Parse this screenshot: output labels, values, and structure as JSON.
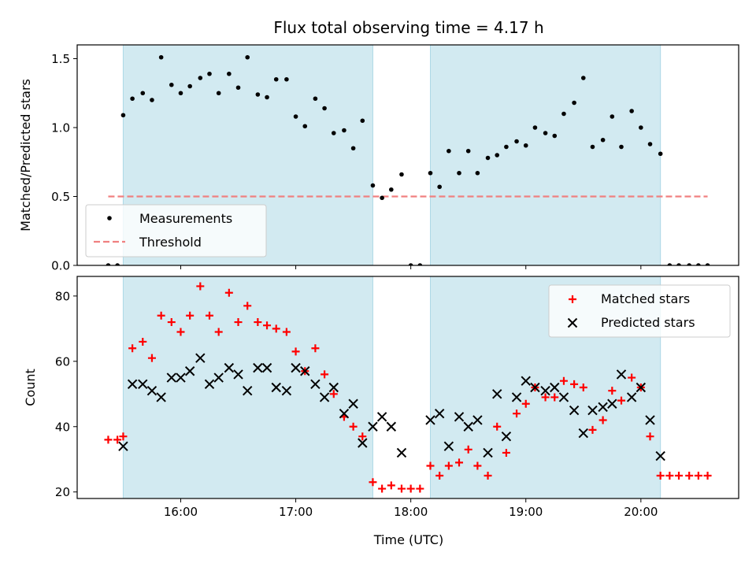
{
  "chart_data": [
    {
      "type": "scatter",
      "title": "Flux total observing time = 4.17 h",
      "xlabel": "",
      "ylabel": "Matched/Predicted stars",
      "xlim_hours": [
        15.1,
        20.85
      ],
      "ylim": [
        0,
        1.6
      ],
      "yticks": [
        0.0,
        0.5,
        1.0,
        1.5
      ],
      "ytick_labels": [
        "0.0",
        "0.5",
        "1.0",
        "1.5"
      ],
      "shaded_intervals_hours": [
        [
          15.5,
          17.67
        ],
        [
          18.17,
          20.17
        ]
      ],
      "shade_color": "#add8e6",
      "threshold": {
        "name": "Threshold",
        "value": 0.5,
        "x_range_hours": [
          15.37,
          20.58
        ],
        "color": "#f08080"
      },
      "legend": {
        "placement": "lower-left",
        "entries": [
          "Measurements",
          "Threshold"
        ]
      },
      "series": [
        {
          "name": "Measurements",
          "marker": "dot",
          "color": "#000000",
          "x": [
            15.37,
            15.45,
            15.5,
            15.58,
            15.67,
            15.75,
            15.83,
            15.92,
            16.0,
            16.08,
            16.17,
            16.25,
            16.33,
            16.42,
            16.5,
            16.58,
            16.67,
            16.75,
            16.83,
            16.92,
            17.0,
            17.08,
            17.17,
            17.25,
            17.33,
            17.42,
            17.5,
            17.58,
            17.67,
            17.75,
            17.83,
            17.92,
            18.0,
            18.08,
            18.17,
            18.25,
            18.33,
            18.42,
            18.5,
            18.58,
            18.67,
            18.75,
            18.83,
            18.92,
            19.0,
            19.08,
            19.17,
            19.25,
            19.33,
            19.42,
            19.5,
            19.58,
            19.67,
            19.75,
            19.83,
            19.92,
            20.0,
            20.08,
            20.17,
            20.25,
            20.33,
            20.42,
            20.5,
            20.58
          ],
          "y": [
            0,
            0,
            1.09,
            1.21,
            1.25,
            1.2,
            1.51,
            1.31,
            1.25,
            1.3,
            1.36,
            1.39,
            1.25,
            1.39,
            1.29,
            1.51,
            1.24,
            1.22,
            1.35,
            1.35,
            1.08,
            1.01,
            1.21,
            1.14,
            0.96,
            0.98,
            0.85,
            1.05,
            0.58,
            0.49,
            0.55,
            0.66,
            0,
            0,
            0.67,
            0.57,
            0.83,
            0.67,
            0.83,
            0.67,
            0.78,
            0.8,
            0.86,
            0.9,
            0.87,
            1.0,
            0.96,
            0.94,
            1.1,
            1.18,
            1.36,
            0.86,
            0.91,
            1.08,
            0.86,
            1.12,
            1.0,
            0.88,
            0.81,
            0,
            0,
            0,
            0,
            0
          ]
        }
      ]
    },
    {
      "type": "scatter",
      "title": "",
      "xlabel": "Time (UTC)",
      "ylabel": "Count",
      "xlim_hours": [
        15.1,
        20.85
      ],
      "xticks_hours": [
        16,
        17,
        18,
        19,
        20
      ],
      "xtick_labels": [
        "16:00",
        "17:00",
        "18:00",
        "19:00",
        "20:00"
      ],
      "ylim": [
        18,
        86
      ],
      "yticks": [
        20,
        40,
        60,
        80
      ],
      "ytick_labels": [
        "20",
        "40",
        "60",
        "80"
      ],
      "shaded_intervals_hours": [
        [
          15.5,
          17.67
        ],
        [
          18.17,
          20.17
        ]
      ],
      "shade_color": "#add8e6",
      "legend": {
        "placement": "upper-right",
        "entries": [
          "Matched stars",
          "Predicted stars"
        ]
      },
      "series": [
        {
          "name": "Matched stars",
          "marker": "plus",
          "color": "#ff0000",
          "x": [
            15.37,
            15.45,
            15.5,
            15.58,
            15.67,
            15.75,
            15.83,
            15.92,
            16.0,
            16.08,
            16.17,
            16.25,
            16.33,
            16.42,
            16.5,
            16.58,
            16.67,
            16.75,
            16.83,
            16.92,
            17.0,
            17.08,
            17.17,
            17.25,
            17.33,
            17.42,
            17.5,
            17.58,
            17.67,
            17.75,
            17.83,
            17.92,
            18.0,
            18.08,
            18.17,
            18.25,
            18.33,
            18.42,
            18.5,
            18.58,
            18.67,
            18.75,
            18.83,
            18.92,
            19.0,
            19.08,
            19.17,
            19.25,
            19.33,
            19.42,
            19.5,
            19.58,
            19.67,
            19.75,
            19.83,
            19.92,
            20.0,
            20.08,
            20.17,
            20.25,
            20.33,
            20.42,
            20.5,
            20.58
          ],
          "y": [
            36,
            36,
            37,
            64,
            66,
            61,
            74,
            72,
            69,
            74,
            83,
            74,
            69,
            81,
            72,
            77,
            72,
            71,
            70,
            69,
            63,
            57,
            64,
            56,
            50,
            43,
            40,
            37,
            23,
            21,
            22,
            21,
            21,
            21,
            28,
            25,
            28,
            29,
            33,
            28,
            25,
            40,
            32,
            44,
            47,
            52,
            49,
            49,
            54,
            53,
            52,
            39,
            42,
            51,
            48,
            55,
            52,
            37,
            25,
            25,
            25,
            25,
            25,
            25
          ]
        },
        {
          "name": "Predicted stars",
          "marker": "x",
          "color": "#000000",
          "x": [
            15.5,
            15.58,
            15.67,
            15.75,
            15.83,
            15.92,
            16.0,
            16.08,
            16.17,
            16.25,
            16.33,
            16.42,
            16.5,
            16.58,
            16.67,
            16.75,
            16.83,
            16.92,
            17.0,
            17.08,
            17.17,
            17.25,
            17.33,
            17.42,
            17.5,
            17.58,
            17.67,
            17.75,
            17.83,
            17.92,
            18.17,
            18.25,
            18.33,
            18.42,
            18.5,
            18.58,
            18.67,
            18.75,
            18.83,
            18.92,
            19.0,
            19.08,
            19.17,
            19.25,
            19.33,
            19.42,
            19.5,
            19.58,
            19.67,
            19.75,
            19.83,
            19.92,
            20.0,
            20.08,
            20.17
          ],
          "y": [
            34,
            53,
            53,
            51,
            49,
            55,
            55,
            57,
            61,
            53,
            55,
            58,
            56,
            51,
            58,
            58,
            52,
            51,
            58,
            57,
            53,
            49,
            52,
            44,
            47,
            35,
            40,
            43,
            40,
            32,
            42,
            44,
            34,
            43,
            40,
            42,
            32,
            50,
            37,
            49,
            54,
            52,
            51,
            52,
            49,
            45,
            38,
            45,
            46,
            47,
            56,
            49,
            52,
            42,
            31
          ]
        }
      ]
    }
  ]
}
